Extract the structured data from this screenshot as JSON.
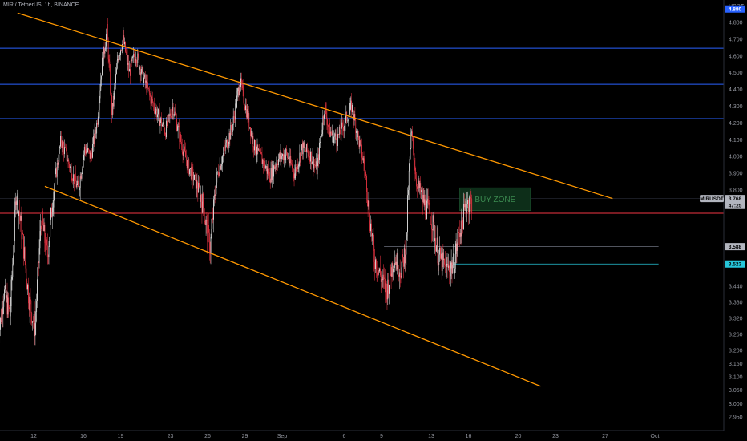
{
  "header": {
    "title": "MIR / TetherUS, 1h, BINANCE"
  },
  "chart_data": {
    "type": "candlestick",
    "title": "MIR / TetherUS, 1h, BINANCE",
    "symbol": "MIRUSDT",
    "y_unit": "USDT",
    "ylim": [
      2.92,
      4.88
    ],
    "x_ticks": [
      {
        "label": "12",
        "day": 12
      },
      {
        "label": "16",
        "day": 16
      },
      {
        "label": "19",
        "day": 19
      },
      {
        "label": "23",
        "day": 23
      },
      {
        "label": "26",
        "day": 26
      },
      {
        "label": "29",
        "day": 29
      },
      {
        "label": "Sep",
        "day": 32
      },
      {
        "label": "6",
        "day": 37
      },
      {
        "label": "9",
        "day": 40
      },
      {
        "label": "13",
        "day": 44
      },
      {
        "label": "16",
        "day": 47
      },
      {
        "label": "20",
        "day": 51
      },
      {
        "label": "23",
        "day": 54
      },
      {
        "label": "27",
        "day": 58
      },
      {
        "label": "Oct",
        "day": 62
      }
    ],
    "y_ticks": [
      4.8,
      4.7,
      4.6,
      4.5,
      4.4,
      4.3,
      4.2,
      4.1,
      4.0,
      3.9,
      3.8,
      3.44,
      3.38,
      3.32,
      3.26,
      3.2,
      3.15,
      3.1,
      3.05,
      3.0,
      2.95
    ],
    "y_tick_labels": [
      "4.800",
      "4.700",
      "4.600",
      "4.500",
      "4.400",
      "4.300",
      "4.200",
      "4.100",
      "4.000",
      "3.900",
      "3.800",
      "3.440",
      "3.380",
      "3.320",
      "3.260",
      "3.200",
      "3.150",
      "3.100",
      "3.050",
      "3.000",
      "2.950"
    ],
    "horizontal_levels": [
      {
        "value": 4.646,
        "label": "4.646",
        "color": "#2962ff"
      },
      {
        "value": 4.431,
        "label": "4.431",
        "color": "#2962ff"
      },
      {
        "value": 4.226,
        "label": "4.226",
        "color": "#2962ff"
      },
      {
        "value": 3.713,
        "label": "3.713",
        "color": "#f23645"
      }
    ],
    "price_tags": [
      {
        "value": 4.88,
        "label": "4.880",
        "color": "#2962ff",
        "text_color": "#ffffff"
      },
      {
        "value": 3.768,
        "label": "3.768",
        "color": "#b2b5be",
        "text_color": "#000000",
        "caption": "MIRUSDT"
      },
      {
        "value": 3.742,
        "label": "47:25",
        "color": "#b2b5be",
        "text_color": "#000000"
      },
      {
        "value": 3.588,
        "label": "3.588",
        "color": "#b2b5be",
        "text_color": "#000000"
      },
      {
        "value": 3.523,
        "label": "3.523",
        "color": "#26c6da",
        "text_color": "#000000"
      }
    ],
    "trendlines": [
      {
        "name": "upper",
        "from": {
          "day": 10.7,
          "value": 4.856
        },
        "to": {
          "day": 58.6,
          "value": 3.768
        },
        "color": "#ff9800"
      },
      {
        "name": "lower",
        "from": {
          "day": 12.9,
          "value": 3.822
        },
        "to": {
          "day": 52.8,
          "value": 3.065
        },
        "color": "#ff9800"
      }
    ],
    "segments": [
      {
        "from": {
          "day": 40.2,
          "value": 3.588
        },
        "to": {
          "day": 62.3,
          "value": 3.588
        },
        "color": "#5d606b"
      },
      {
        "from": {
          "day": 45.9,
          "value": 3.523
        },
        "to": {
          "day": 62.3,
          "value": 3.523
        },
        "color": "#26c6da"
      }
    ],
    "zones": [
      {
        "label": "BUY ZONE",
        "day_from": 46.3,
        "day_to": 52.0,
        "top": 3.813,
        "bottom": 3.723,
        "fill": "#0d2e19",
        "stroke": "#1e5a32"
      }
    ],
    "price_path": [
      [
        9.1,
        3.22
      ],
      [
        9.6,
        3.42
      ],
      [
        10.1,
        3.33
      ],
      [
        10.6,
        3.8
      ],
      [
        11.1,
        3.62
      ],
      [
        11.6,
        3.4
      ],
      [
        12.1,
        3.28
      ],
      [
        12.6,
        3.7
      ],
      [
        13.1,
        3.55
      ],
      [
        13.6,
        3.8
      ],
      [
        14.2,
        4.1
      ],
      [
        15.0,
        3.92
      ],
      [
        15.6,
        3.8
      ],
      [
        16.1,
        4.05
      ],
      [
        16.6,
        4.0
      ],
      [
        17.1,
        4.2
      ],
      [
        17.5,
        4.55
      ],
      [
        17.9,
        4.75
      ],
      [
        18.3,
        4.25
      ],
      [
        18.8,
        4.6
      ],
      [
        19.2,
        4.7
      ],
      [
        19.7,
        4.5
      ],
      [
        20.2,
        4.62
      ],
      [
        20.8,
        4.48
      ],
      [
        21.4,
        4.35
      ],
      [
        22.0,
        4.25
      ],
      [
        22.6,
        4.15
      ],
      [
        23.2,
        4.3
      ],
      [
        23.8,
        4.1
      ],
      [
        24.4,
        3.95
      ],
      [
        25.0,
        3.85
      ],
      [
        25.6,
        3.75
      ],
      [
        26.2,
        3.58
      ],
      [
        26.8,
        3.9
      ],
      [
        27.4,
        4.05
      ],
      [
        28.0,
        4.18
      ],
      [
        28.6,
        4.45
      ],
      [
        29.2,
        4.25
      ],
      [
        29.8,
        4.05
      ],
      [
        30.4,
        3.98
      ],
      [
        31.0,
        3.88
      ],
      [
        31.6,
        3.98
      ],
      [
        32.3,
        4.02
      ],
      [
        33.0,
        3.9
      ],
      [
        33.6,
        4.05
      ],
      [
        34.2,
        4.02
      ],
      [
        34.8,
        3.92
      ],
      [
        35.4,
        4.3
      ],
      [
        35.8,
        4.15
      ],
      [
        36.4,
        4.1
      ],
      [
        37.0,
        4.2
      ],
      [
        37.6,
        4.3
      ],
      [
        38.1,
        4.12
      ],
      [
        38.6,
        3.95
      ],
      [
        39.0,
        3.72
      ],
      [
        39.4,
        3.55
      ],
      [
        39.9,
        3.48
      ],
      [
        40.4,
        3.42
      ],
      [
        41.0,
        3.55
      ],
      [
        41.6,
        3.5
      ],
      [
        42.0,
        3.6
      ],
      [
        42.4,
        4.15
      ],
      [
        42.8,
        3.85
      ],
      [
        43.4,
        3.75
      ],
      [
        44.0,
        3.7
      ],
      [
        44.6,
        3.55
      ],
      [
        45.2,
        3.5
      ],
      [
        45.8,
        3.52
      ],
      [
        46.3,
        3.65
      ],
      [
        46.9,
        3.76
      ],
      [
        47.3,
        3.75
      ]
    ]
  }
}
